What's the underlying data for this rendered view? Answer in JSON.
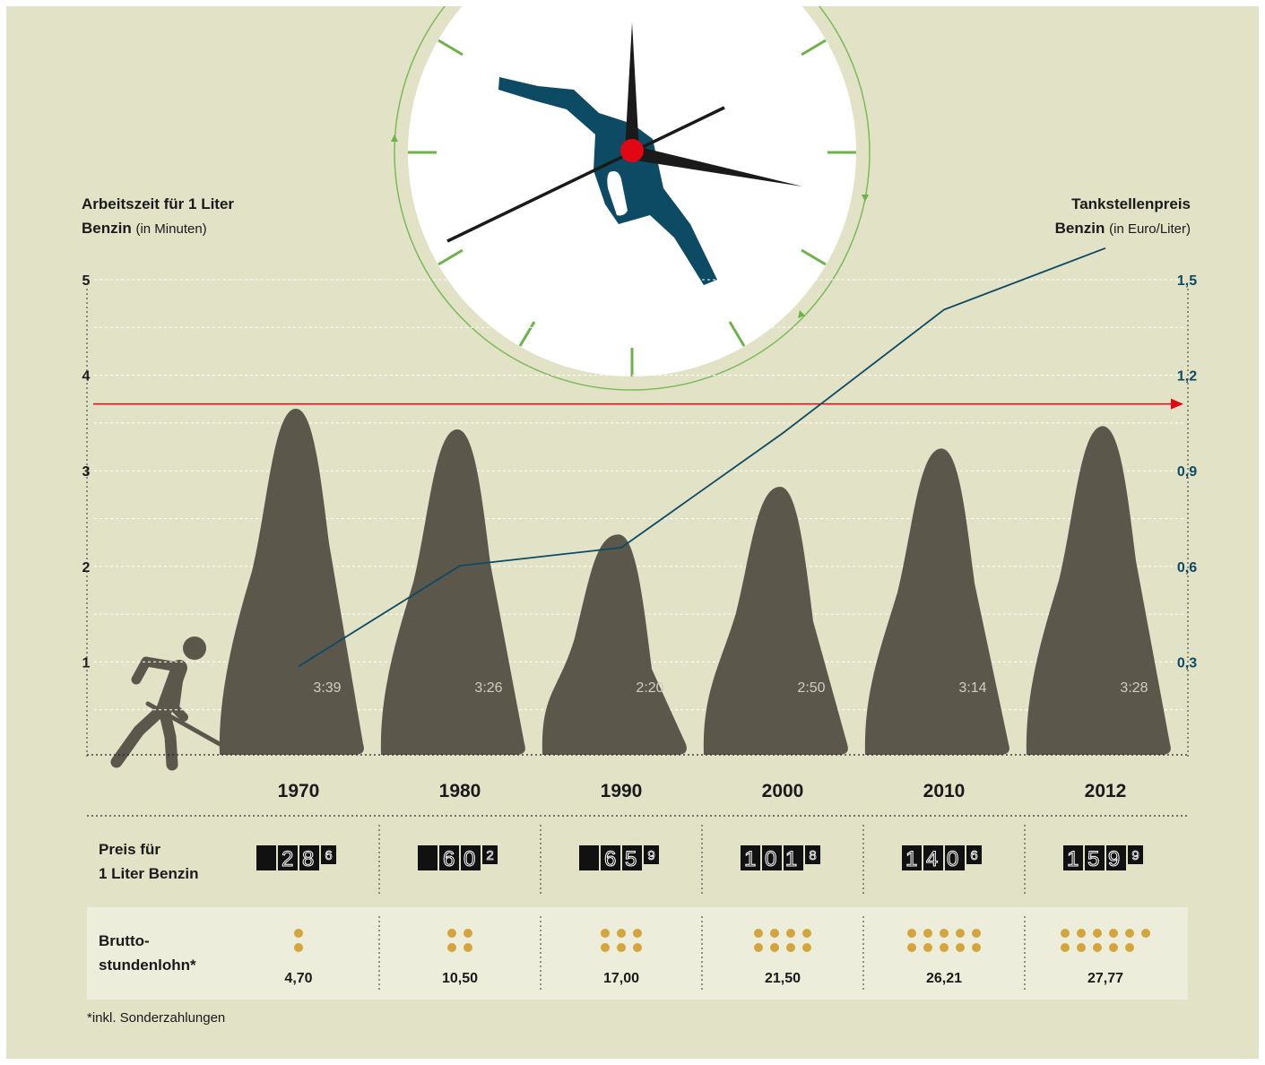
{
  "chart_data": {
    "type": "mountain",
    "y_title": "Arbeitszeit für 1 Liter",
    "y_title_2": "Benzin",
    "y_unit": "(in Minuten)",
    "y2_title": "Tankstellenpreis",
    "y2_title_2": "Benzin",
    "y2_unit": "(in Euro/Liter)",
    "categories": [
      "1970",
      "1980",
      "1990",
      "2000",
      "2010",
      "2012"
    ],
    "series": [
      {
        "color": "#5b574b",
        "values": [
          3.65,
          3.433,
          2.333,
          2.833,
          3.233,
          3.467
        ],
        "value_labels": [
          "3:39",
          "3:26",
          "2:20",
          "2:50",
          "3:14",
          "3:28"
        ]
      },
      {
        "type": "line",
        "axis": "y2",
        "color": "#0d4a63",
        "values": [
          0.286,
          0.602,
          0.659,
          1.018,
          1.406,
          1.599
        ]
      }
    ],
    "ylim": [
      0,
      5
    ],
    "yticks": [
      1,
      2,
      3,
      4,
      5
    ],
    "minor_yticks": [
      0.5,
      1.5,
      2.5,
      3.5,
      4.5
    ],
    "y2lim": [
      0,
      1.5
    ],
    "y2ticks": [
      {
        "value": 0.3,
        "label": "0,3"
      },
      {
        "value": 0.6,
        "label": "0,6"
      },
      {
        "value": 0.9,
        "label": "0,9"
      },
      {
        "value": 1.2,
        "label": "1,2"
      },
      {
        "value": 1.5,
        "label": "1,5"
      }
    ],
    "reference_line": {
      "value": 3.7,
      "color": "#e30613"
    },
    "grid": true
  },
  "table": {
    "rows": [
      {
        "label": [
          "Preis für",
          "1 Liter Benzin"
        ],
        "cells": [
          {
            "main": "28",
            "tenth": "6"
          },
          {
            "main": "60",
            "tenth": "2"
          },
          {
            "main": "65",
            "tenth": "9"
          },
          {
            "main": "101",
            "tenth": "8"
          },
          {
            "main": "140",
            "tenth": "6"
          },
          {
            "main": "159",
            "tenth": "9"
          }
        ]
      },
      {
        "label": [
          "Brutto-",
          "stundenlohn*"
        ],
        "values": [
          4.7,
          10.5,
          17.0,
          21.5,
          26.21,
          27.77
        ],
        "value_labels": [
          "4,70",
          "10,50",
          "17,00",
          "21,50",
          "26,21",
          "27,77"
        ],
        "dots": [
          2,
          4,
          6,
          8,
          10,
          11
        ],
        "dot_color": "#d3a53c"
      }
    ],
    "footnote": "*inkl. Sonderzahlungen"
  }
}
